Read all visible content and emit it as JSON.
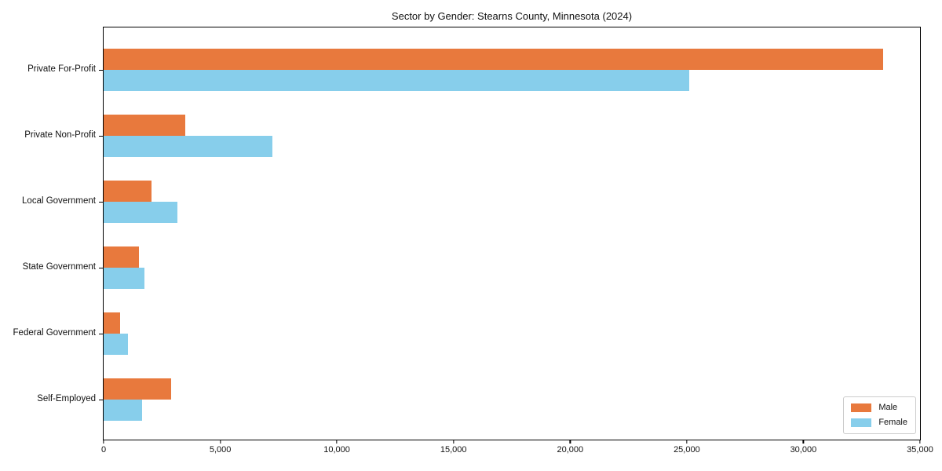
{
  "title": "Sector by Gender: Stearns County, Minnesota (2024)",
  "chart_data": {
    "type": "bar",
    "orientation": "horizontal",
    "title": "Sector by Gender: Stearns County, Minnesota (2024)",
    "xlabel": "",
    "ylabel": "",
    "categories": [
      "Private For-Profit",
      "Private Non-Profit",
      "Local Government",
      "State Government",
      "Federal Government",
      "Self-Employed"
    ],
    "series": [
      {
        "name": "Male",
        "color": "#e8793d",
        "values": [
          33400,
          3500,
          2050,
          1500,
          700,
          2900
        ]
      },
      {
        "name": "Female",
        "color": "#87ceeb",
        "values": [
          25100,
          7250,
          3150,
          1750,
          1050,
          1650
        ]
      }
    ],
    "xlim": [
      0,
      35000
    ],
    "x_ticks": [
      0,
      5000,
      10000,
      15000,
      20000,
      25000,
      30000,
      35000
    ],
    "x_tick_labels": [
      "0",
      "5,000",
      "10,000",
      "15,000",
      "20,000",
      "25,000",
      "30,000",
      "35,000"
    ],
    "grid": false,
    "legend_position": "lower right",
    "axis_color": "#000000",
    "text_color": "#111111",
    "background_color": "#ffffff"
  }
}
